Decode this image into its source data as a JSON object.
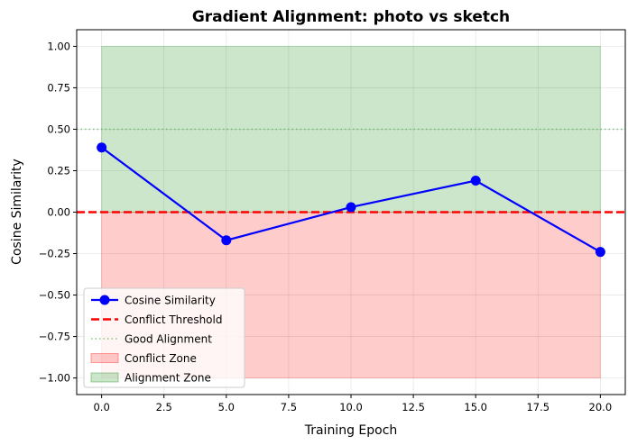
{
  "chart_data": {
    "type": "line",
    "title": "Gradient Alignment: photo vs sketch",
    "xlabel": "Training Epoch",
    "ylabel": "Cosine Similarity",
    "xlim": [
      -1,
      21
    ],
    "ylim": [
      -1.1,
      1.1
    ],
    "grid": true,
    "legend_position": "lower-left",
    "x_ticks": [
      0.0,
      2.5,
      5.0,
      7.5,
      10.0,
      12.5,
      15.0,
      17.5,
      20.0
    ],
    "x_tick_labels": [
      "0.0",
      "2.5",
      "5.0",
      "7.5",
      "10.0",
      "12.5",
      "15.0",
      "17.5",
      "20.0"
    ],
    "y_ticks": [
      -1.0,
      -0.75,
      -0.5,
      -0.25,
      0.0,
      0.25,
      0.5,
      0.75,
      1.0
    ],
    "y_tick_labels": [
      "−1.00",
      "−0.75",
      "−0.50",
      "−0.25",
      "0.00",
      "0.25",
      "0.50",
      "0.75",
      "1.00"
    ],
    "series": [
      {
        "name": "Cosine Similarity",
        "color": "#0000ff",
        "x": [
          0,
          5,
          10,
          15,
          20
        ],
        "y": [
          0.39,
          -0.17,
          0.03,
          0.19,
          -0.24
        ]
      }
    ],
    "reference_lines": [
      {
        "name": "Conflict Threshold",
        "y": 0.0,
        "color": "#ff0000",
        "style": "dashed"
      },
      {
        "name": "Good Alignment",
        "y": 0.5,
        "color": "#4caf50",
        "style": "dotted"
      }
    ],
    "zones": [
      {
        "name": "Conflict Zone",
        "x_range": [
          0,
          20
        ],
        "y_range": [
          -1.0,
          0.0
        ],
        "color": "#ff0000",
        "alpha": 0.2
      },
      {
        "name": "Alignment Zone",
        "x_range": [
          0,
          20
        ],
        "y_range": [
          0.0,
          1.0
        ],
        "color": "#008000",
        "alpha": 0.2
      }
    ],
    "legend": [
      "Cosine Similarity",
      "Conflict Threshold",
      "Good Alignment",
      "Conflict Zone",
      "Alignment Zone"
    ]
  }
}
